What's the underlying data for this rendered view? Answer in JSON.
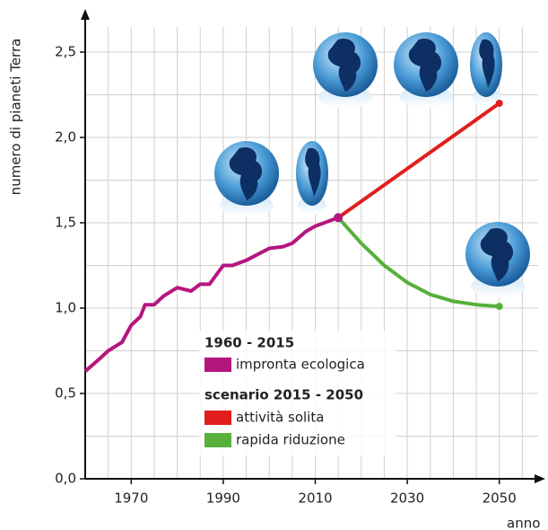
{
  "chart_data": {
    "type": "line",
    "ylabel": "numero di pianeti Terra",
    "xlabel": "anno",
    "xlim": [
      1960,
      2050
    ],
    "xticks": [
      1970,
      1990,
      2010,
      2030,
      2050
    ],
    "ylim": [
      0,
      2.5
    ],
    "yticks": [
      {
        "value": 0,
        "label": "0,0"
      },
      {
        "value": 0.5,
        "label": "0,5"
      },
      {
        "value": 1,
        "label": "1,0"
      },
      {
        "value": 1.5,
        "label": "1,5"
      },
      {
        "value": 2,
        "label": "2,0"
      },
      {
        "value": 2.5,
        "label": "2,5"
      }
    ],
    "grid": true,
    "legend_groups": [
      "1960 - 2015",
      "scenario 2015 - 2050"
    ],
    "series": [
      {
        "name": "impronta ecologica",
        "color": "#b5167e",
        "x": [
          1960,
          1963,
          1965,
          1968,
          1970,
          1972,
          1973,
          1975,
          1977,
          1980,
          1983,
          1985,
          1987,
          1990,
          1992,
          1995,
          2000,
          2003,
          2005,
          2008,
          2010,
          2015
        ],
        "values": [
          0.63,
          0.7,
          0.75,
          0.8,
          0.9,
          0.95,
          1.02,
          1.02,
          1.07,
          1.12,
          1.1,
          1.14,
          1.14,
          1.25,
          1.25,
          1.28,
          1.35,
          1.36,
          1.38,
          1.45,
          1.48,
          1.53
        ]
      },
      {
        "name": "attività solita",
        "color": "#e01e1e",
        "x": [
          2015,
          2050
        ],
        "values": [
          1.53,
          2.2
        ]
      },
      {
        "name": "rapida riduzione",
        "color": "#56b03a",
        "x": [
          2015,
          2020,
          2025,
          2030,
          2035,
          2040,
          2045,
          2050
        ],
        "values": [
          1.53,
          1.38,
          1.25,
          1.15,
          1.08,
          1.04,
          1.02,
          1.01
        ]
      }
    ]
  }
}
